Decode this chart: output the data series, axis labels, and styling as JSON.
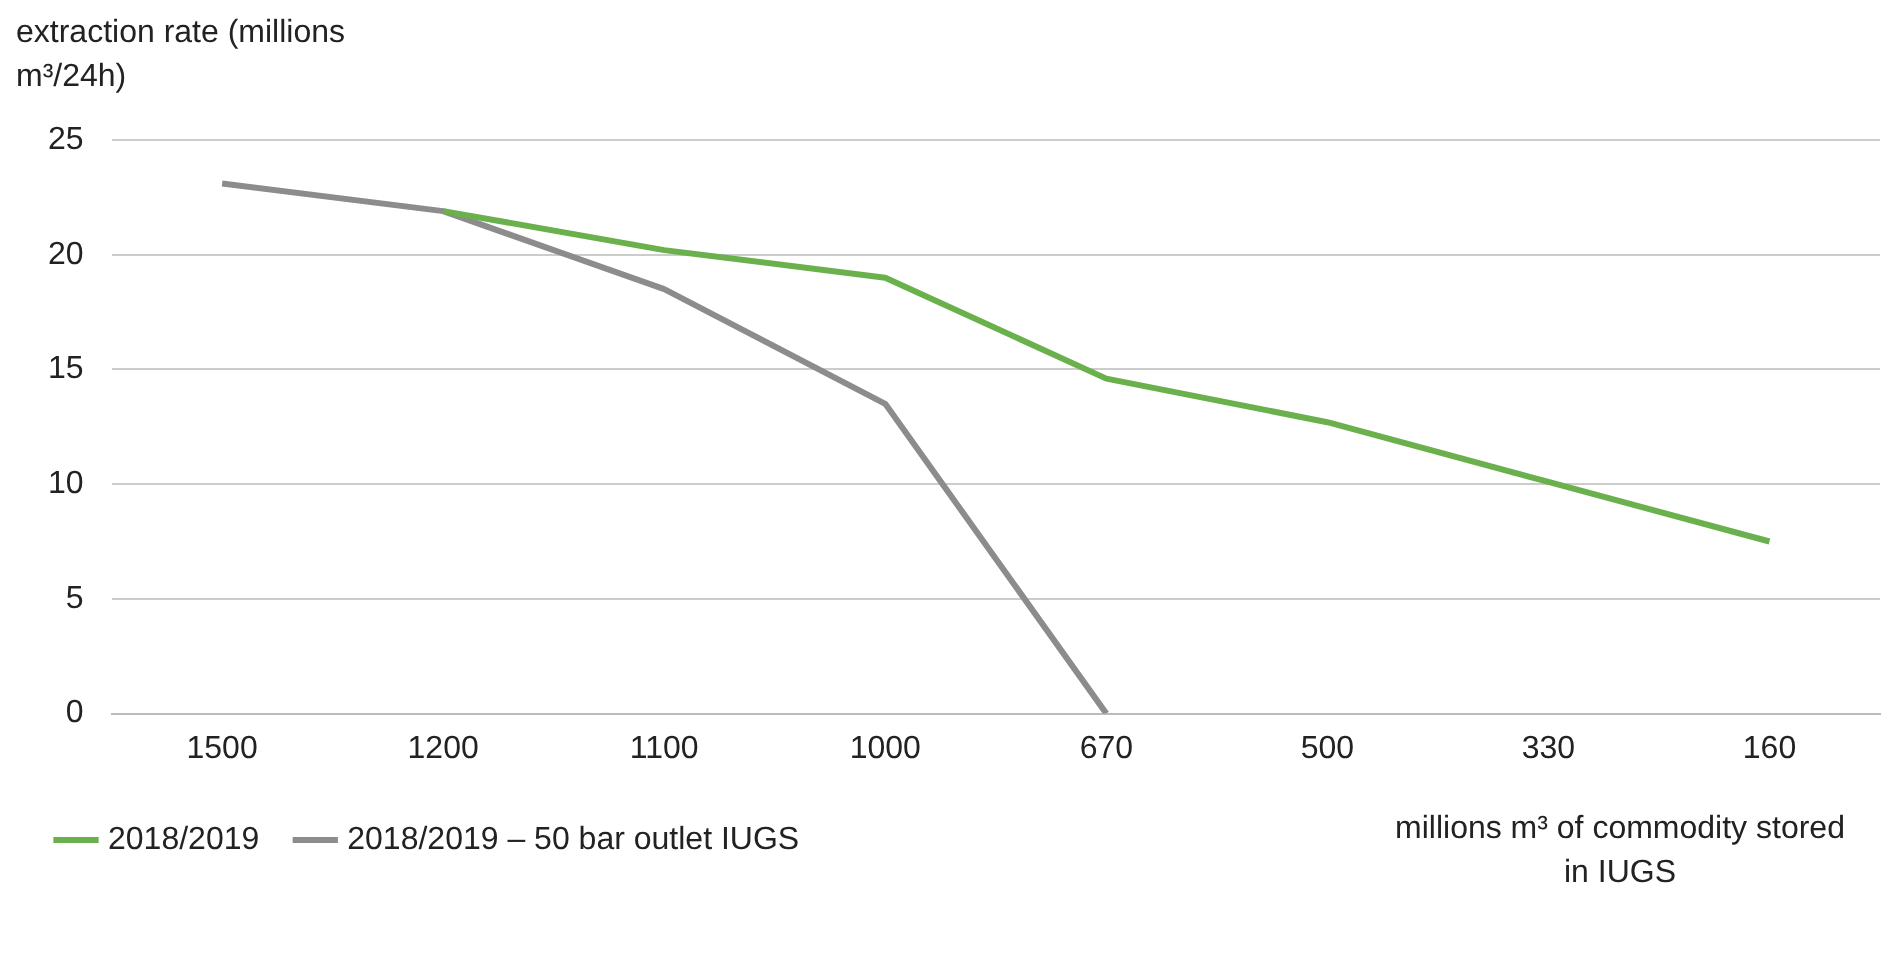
{
  "chart_data": {
    "type": "line",
    "ylabel": "extraction rate (millions m³/24h)",
    "xlabel": "millions m³ of commodity stored in IUGS",
    "categories": [
      "1500",
      "1200",
      "1100",
      "1000",
      "670",
      "500",
      "330",
      "160"
    ],
    "series": [
      {
        "name": "2018/2019",
        "color": "#6ab04c",
        "values": [
          null,
          21.9,
          20.2,
          19.0,
          14.6,
          12.7,
          10.1,
          7.5
        ]
      },
      {
        "name": "2018/2019 – 50 bar outlet IUGS",
        "color": "#8c8c8c",
        "values": [
          23.1,
          21.9,
          18.5,
          13.5,
          0,
          null,
          null,
          null
        ]
      }
    ],
    "ylim": [
      0,
      25
    ],
    "yticks": [
      0,
      5,
      10,
      15,
      20,
      25
    ],
    "grid": "y",
    "legend": "bottom left",
    "marker": "none",
    "line_style": "solid"
  }
}
